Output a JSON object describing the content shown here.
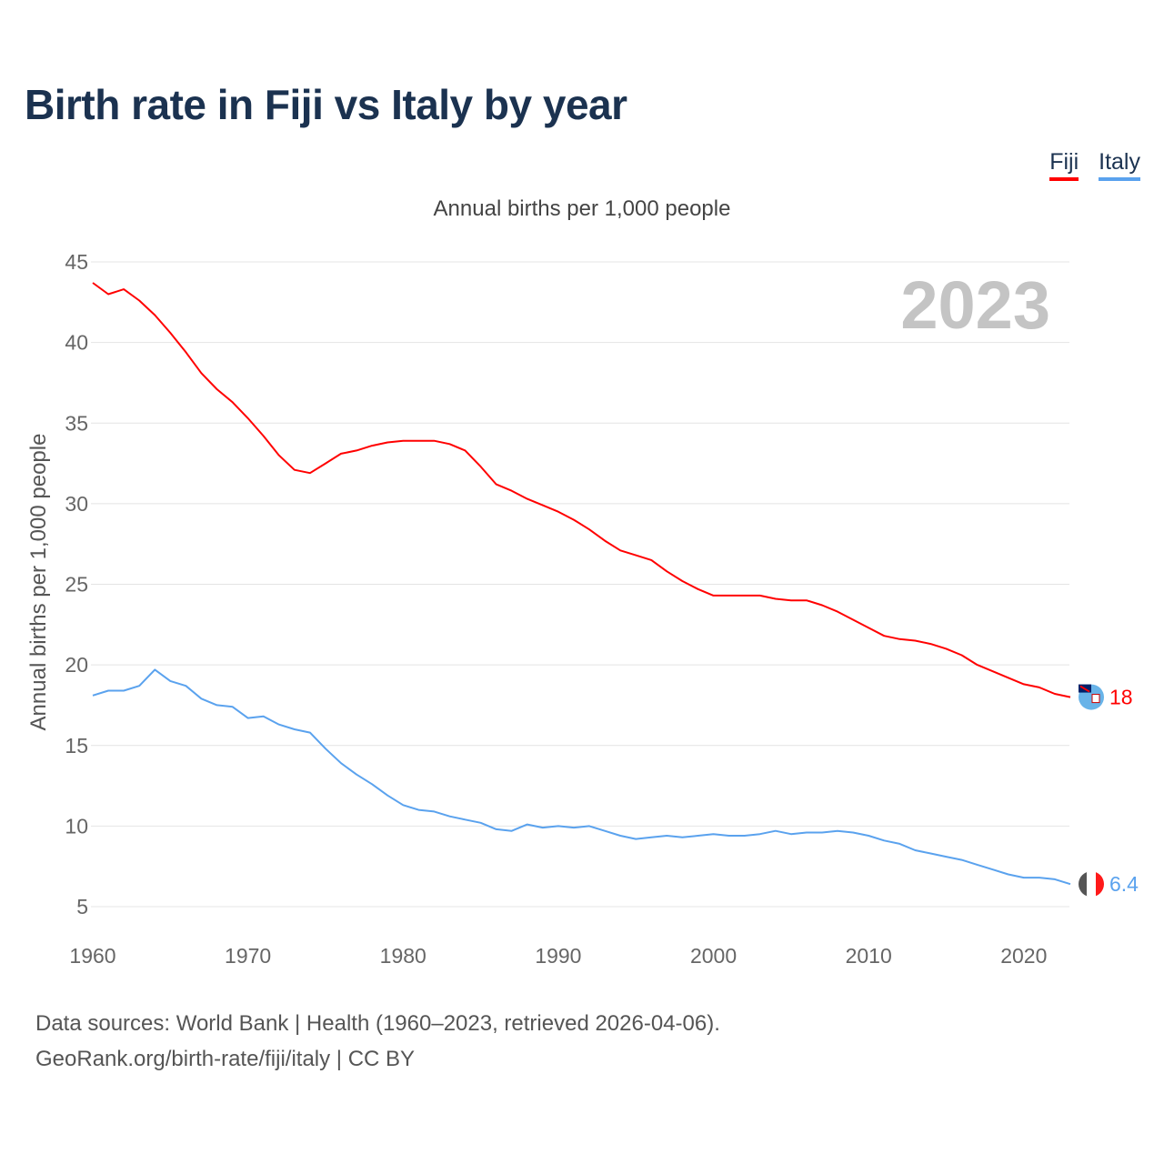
{
  "title": "Birth rate in Fiji vs Italy by year",
  "subtitle": "Annual births per 1,000 people",
  "year_label": "2023",
  "footer": {
    "line1": "Data sources: World Bank | Health (1960–2023, retrieved 2026-04-06).",
    "line2": "GeoRank.org/birth-rate/fiji/italy | CC BY"
  },
  "chart_data": {
    "type": "line",
    "title": "Birth rate in Fiji vs Italy by year",
    "xlabel": "",
    "ylabel": "Annual births per 1,000 people",
    "xlim": [
      1960,
      2023
    ],
    "ylim": [
      5,
      45
    ],
    "xticks": [
      1960,
      1970,
      1980,
      1990,
      2000,
      2010,
      2020
    ],
    "yticks": [
      5,
      10,
      15,
      20,
      25,
      30,
      35,
      40,
      45
    ],
    "grid": true,
    "legend_position": "top-right",
    "x_start": 1960,
    "series": [
      {
        "name": "Fiji",
        "color": "#ff0000",
        "end_label": "18",
        "values": [
          43.7,
          43.0,
          43.3,
          42.6,
          41.7,
          40.6,
          39.4,
          38.1,
          37.1,
          36.3,
          35.3,
          34.2,
          33.0,
          32.1,
          31.9,
          32.5,
          33.1,
          33.3,
          33.6,
          33.8,
          33.9,
          33.9,
          33.9,
          33.7,
          33.3,
          32.3,
          31.2,
          30.8,
          30.3,
          29.9,
          29.5,
          29.0,
          28.4,
          27.7,
          27.1,
          26.8,
          26.5,
          25.8,
          25.2,
          24.7,
          24.3,
          24.3,
          24.3,
          24.3,
          24.1,
          24.0,
          24.0,
          23.7,
          23.3,
          22.8,
          22.3,
          21.8,
          21.6,
          21.5,
          21.3,
          21.0,
          20.6,
          20.0,
          19.6,
          19.2,
          18.8,
          18.6,
          18.2,
          18.0
        ]
      },
      {
        "name": "Italy",
        "color": "#5aa2ee",
        "end_label": "6.4",
        "values": [
          18.1,
          18.4,
          18.4,
          18.7,
          19.7,
          19.0,
          18.7,
          17.9,
          17.5,
          17.4,
          16.7,
          16.8,
          16.3,
          16.0,
          15.8,
          14.8,
          13.9,
          13.2,
          12.6,
          11.9,
          11.3,
          11.0,
          10.9,
          10.6,
          10.4,
          10.2,
          9.8,
          9.7,
          10.1,
          9.9,
          10.0,
          9.9,
          10.0,
          9.7,
          9.4,
          9.2,
          9.3,
          9.4,
          9.3,
          9.4,
          9.5,
          9.4,
          9.4,
          9.5,
          9.7,
          9.5,
          9.6,
          9.6,
          9.7,
          9.6,
          9.4,
          9.1,
          8.9,
          8.5,
          8.3,
          8.1,
          7.9,
          7.6,
          7.3,
          7.0,
          6.8,
          6.8,
          6.7,
          6.4
        ]
      }
    ]
  }
}
